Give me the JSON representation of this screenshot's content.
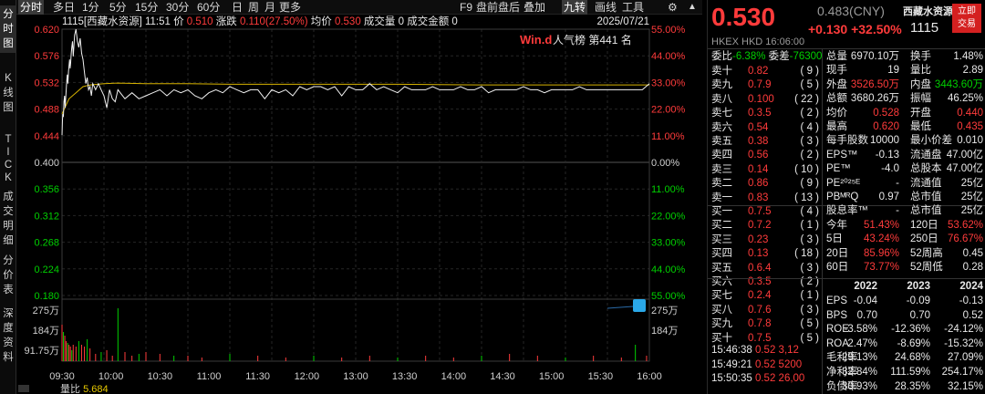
{
  "vtabs": [
    {
      "label": "分时图",
      "active": true
    },
    {
      "label": "K线图"
    },
    {
      "label": "TICK"
    },
    {
      "label": "成交明细"
    },
    {
      "label": "分价表"
    },
    {
      "label": "深度资料"
    }
  ],
  "toolbar": {
    "left": [
      "分时",
      "多日",
      "1分",
      "5分",
      "15分",
      "30分",
      "60分",
      "日",
      "周",
      "月",
      "更多"
    ],
    "right": [
      "F9",
      "盘前盘后",
      "叠加",
      "九转",
      "画线",
      "工具"
    ],
    "gear": "⚙",
    "up_arrow": "▲"
  },
  "info": {
    "code": "1115",
    "name": "[西藏水资源]",
    "time": "11:51",
    "price_label": "价",
    "price": "0.510",
    "change_label": "涨跌",
    "change": "0.110(27.50%)",
    "avg_label": "均价",
    "avg": "0.530",
    "vol_label": "成交量",
    "vol": "0",
    "amt_label": "成交金额",
    "amt": "0",
    "date": "2025/07/21"
  },
  "wind": {
    "logo": "Win.d",
    "label": "人气榜",
    "rank_prefix": "第",
    "rank": "441",
    "rank_suffix": "名"
  },
  "chart_data": {
    "type": "line",
    "prev_close": 0.4,
    "y_ticks": [
      "0.620",
      "0.576",
      "0.532",
      "0.488",
      "0.444",
      "0.400",
      "0.356",
      "0.312",
      "0.268",
      "0.224",
      "0.180"
    ],
    "pct_ticks": [
      "55.00%",
      "44.00%",
      "33.00%",
      "22.00%",
      "11.00%",
      "0.00%",
      "11.00%",
      "22.00%",
      "33.00%",
      "44.00%",
      "55.00%"
    ],
    "x_ticks": [
      "09:30",
      "10:00",
      "10:30",
      "11:00",
      "11:30",
      "12:00",
      "13:00",
      "13:30",
      "14:00",
      "14:30",
      "15:00",
      "15:30",
      "16:00"
    ],
    "vol_ticks": [
      "275万",
      "184万",
      "91.75万"
    ],
    "price_x": [
      0,
      0.3,
      0.6,
      1,
      1.4,
      1.8,
      2.2,
      2.6,
      3,
      3.4,
      3.8,
      4.2,
      4.6,
      5,
      5.4,
      5.8,
      6.2,
      6.6,
      7,
      7.5,
      8,
      9,
      10,
      11,
      12,
      13,
      14,
      15,
      16,
      17,
      18,
      19,
      20,
      21,
      22,
      23,
      24,
      26,
      28,
      30,
      32,
      34,
      36,
      38,
      40,
      45,
      50,
      55,
      60,
      65,
      70,
      75,
      80,
      85,
      90,
      95,
      100,
      105,
      110,
      115,
      120,
      125,
      130,
      135,
      140,
      145,
      150,
      155,
      160,
      165,
      170,
      175,
      180,
      185,
      190,
      195,
      200,
      205,
      210,
      215,
      220,
      225,
      230,
      235,
      240,
      245,
      250,
      255,
      260,
      265,
      270,
      275,
      280,
      285,
      290,
      295,
      300,
      305,
      310,
      315,
      320,
      325,
      330,
      335,
      340,
      345,
      350,
      355,
      360,
      365,
      370,
      375,
      380,
      385,
      390,
      395,
      400,
      405,
      410,
      415,
      420
    ],
    "price_y": [
      0.445,
      0.47,
      0.48,
      0.475,
      0.5,
      0.51,
      0.49,
      0.505,
      0.52,
      0.535,
      0.545,
      0.53,
      0.55,
      0.56,
      0.57,
      0.555,
      0.565,
      0.58,
      0.59,
      0.6,
      0.575,
      0.61,
      0.62,
      0.6,
      0.59,
      0.605,
      0.58,
      0.57,
      0.55,
      0.53,
      0.54,
      0.52,
      0.525,
      0.51,
      0.53,
      0.525,
      0.52,
      0.53,
      0.52,
      0.51,
      0.49,
      0.52,
      0.505,
      0.5,
      0.52,
      0.505,
      0.515,
      0.505,
      0.51,
      0.515,
      0.52,
      0.51,
      0.52,
      0.515,
      0.52,
      0.51,
      0.505,
      0.515,
      0.52,
      0.515,
      0.525,
      0.52,
      0.515,
      0.52,
      0.52,
      0.505,
      0.52,
      0.515,
      0.52,
      0.51,
      0.525,
      0.52,
      0.525,
      0.525,
      0.52,
      0.525,
      0.51,
      0.525,
      0.52,
      0.52,
      0.53,
      0.52,
      0.525,
      0.52,
      0.515,
      0.525,
      0.52,
      0.52,
      0.52,
      0.525,
      0.52,
      0.52,
      0.52,
      0.525,
      0.52,
      0.52,
      0.525,
      0.515,
      0.52,
      0.52,
      0.52,
      0.52,
      0.525,
      0.52,
      0.52,
      0.515,
      0.52,
      0.52,
      0.52,
      0.52,
      0.525,
      0.52,
      0.52,
      0.52,
      0.52,
      0.52,
      0.52,
      0.52,
      0.52,
      0.52,
      0.53
    ],
    "avg_x": [
      0,
      5,
      10,
      15,
      20,
      30,
      40,
      60,
      90,
      120,
      180,
      240,
      300,
      360,
      420
    ],
    "avg_y": [
      0.48,
      0.505,
      0.515,
      0.525,
      0.528,
      0.53,
      0.531,
      0.53,
      0.53,
      0.529,
      0.529,
      0.529,
      0.528,
      0.528,
      0.528
    ],
    "vol_x": [
      0,
      1,
      2,
      3,
      4,
      5,
      6,
      7,
      8,
      10,
      12,
      14,
      16,
      18,
      20,
      24,
      28,
      32,
      36,
      40,
      45,
      50,
      55,
      60,
      70,
      80,
      90,
      100,
      120,
      140,
      160,
      180,
      200,
      220,
      240,
      260,
      280,
      300,
      320,
      340,
      360,
      380,
      400,
      410,
      418
    ],
    "vol_v": [
      2.0,
      1.6,
      1.4,
      1.1,
      1.0,
      0.9,
      0.8,
      0.6,
      0.9,
      0.8,
      1.1,
      0.9,
      0.8,
      1.2,
      0.7,
      0.4,
      0.5,
      0.6,
      0.3,
      2.9,
      0.5,
      0.3,
      0.4,
      0.5,
      0.4,
      0.3,
      0.3,
      0.2,
      0.4,
      0.3,
      0.2,
      0.3,
      0.2,
      0.3,
      0.2,
      0.3,
      0.2,
      0.3,
      0.4,
      0.3,
      0.2,
      0.3,
      0.2,
      0.9,
      0.3
    ],
    "vol_max": 3.2
  },
  "bottom": {
    "label": "量比",
    "value": "5.684"
  },
  "quote": {
    "price": "0.530",
    "ref": "0.483(CNY)",
    "name": "西藏水资源",
    "code": "1115",
    "change": "+0.130",
    "pct": "+32.50%",
    "btn": "立即\n交易",
    "hkex": "HKEX  HKD  16:06:00"
  },
  "weibi": {
    "label1": "委比",
    "value1": "-6.38%",
    "label2": "委差",
    "value2": "-76300"
  },
  "asks": [
    {
      "label": "卖十",
      "price": "0.82",
      "vol": "9"
    },
    {
      "label": "卖九",
      "price": "0.7.9",
      "vol": "5"
    },
    {
      "label": "卖八",
      "price": "0.100",
      "vol": "22"
    },
    {
      "label": "卖七",
      "price": "0.3.5",
      "vol": "2"
    },
    {
      "label": "卖六",
      "price": "0.54",
      "vol": "4"
    },
    {
      "label": "卖五",
      "price": "0.38",
      "vol": "3"
    },
    {
      "label": "卖四",
      "price": "0.56",
      "vol": "2"
    },
    {
      "label": "卖三",
      "price": "0.14",
      "vol": "10"
    },
    {
      "label": "卖二",
      "price": "0.86",
      "vol": "9"
    },
    {
      "label": "卖一",
      "price": "0.83",
      "vol": "13"
    }
  ],
  "bids": [
    {
      "label": "买一",
      "price": "0.7.5",
      "vol": "4"
    },
    {
      "label": "买二",
      "price": "0.7.2",
      "vol": "1"
    },
    {
      "label": "买三",
      "price": "0.23",
      "vol": "3"
    },
    {
      "label": "买四",
      "price": "0.13",
      "vol": "18"
    },
    {
      "label": "买五",
      "price": "0.6.4",
      "vol": "3"
    },
    {
      "label": "买六",
      "price": "0.3.5",
      "vol": "2"
    },
    {
      "label": "买七",
      "price": "0.2.4",
      "vol": "1"
    },
    {
      "label": "买八",
      "price": "0.7.6",
      "vol": "3"
    },
    {
      "label": "买九",
      "price": "0.7.8",
      "vol": "5"
    },
    {
      "label": "买十",
      "price": "0.7.5",
      "vol": "5"
    }
  ],
  "ticks": [
    {
      "time": "15:46:38",
      "price": "0.52",
      "vol": "3,12"
    },
    {
      "time": "15:49:21",
      "price": "0.52",
      "vol": "5200"
    },
    {
      "time": "15:50:35",
      "price": "0.52",
      "vol": "26,00"
    }
  ],
  "stats": [
    {
      "l1": "总量",
      "v1": "6970.10万",
      "l2": "换手",
      "v2": "1.48%",
      "c1": "white",
      "c2": "white"
    },
    {
      "l1": "现手",
      "v1": "19",
      "l2": "量比",
      "v2": "2.89",
      "c1": "white",
      "c2": "white"
    },
    {
      "l1": "外盘",
      "v1": "3526.50万",
      "l2": "内盘",
      "v2": "3443.60万",
      "c1": "red",
      "c2": "green"
    },
    {
      "l1": "总额",
      "v1": "3680.26万",
      "l2": "振幅",
      "v2": "46.25%",
      "c1": "white",
      "c2": "white"
    },
    {
      "l1": "均价",
      "v1": "0.528",
      "l2": "开盘",
      "v2": "0.440",
      "c1": "red",
      "c2": "red"
    },
    {
      "l1": "最高",
      "v1": "0.620",
      "l2": "最低",
      "v2": "0.435",
      "c1": "red",
      "c2": "red"
    },
    {
      "l1": "每手股数",
      "v1": "10000",
      "l2": "最小价差",
      "v2": "0.010",
      "c1": "white",
      "c2": "white"
    },
    {
      "l1": "EPS™",
      "v1": "-0.13",
      "l2": "流通盘",
      "v2": "47.00亿",
      "c1": "white",
      "c2": "white"
    },
    {
      "l1": "PE™",
      "v1": "-4.0",
      "l2": "总股本",
      "v2": "47.00亿",
      "c1": "white",
      "c2": "white"
    },
    {
      "l1": "PE²⁰²⁵ᴱ",
      "v1": "-",
      "l2": "流通值",
      "v2": "25亿",
      "c1": "white",
      "c2": "white"
    },
    {
      "l1": "PBᴹᴿQ",
      "v1": "0.97",
      "l2": "总市值",
      "v2": "25亿",
      "c1": "white",
      "c2": "white"
    },
    {
      "l1": "股息率™",
      "v1": "-",
      "l2": "总市值",
      "v2": "25亿",
      "c1": "white",
      "c2": "white"
    },
    {
      "l1": "今年",
      "v1": "51.43%",
      "l2": "120日",
      "v2": "53.62%",
      "c1": "red",
      "c2": "red"
    },
    {
      "l1": "5日",
      "v1": "43.24%",
      "l2": "250日",
      "v2": "76.67%",
      "c1": "red",
      "c2": "red"
    },
    {
      "l1": "20日",
      "v1": "85.96%",
      "l2": "52周高",
      "v2": "0.45",
      "c1": "red",
      "c2": "white"
    },
    {
      "l1": "60日",
      "v1": "73.77%",
      "l2": "52周低",
      "v2": "0.28",
      "c1": "red",
      "c2": "white"
    }
  ],
  "fin": {
    "years": [
      "2022",
      "2023",
      "2024"
    ],
    "rows": [
      {
        "label": "EPS",
        "vals": [
          "-0.04",
          "-0.09",
          "-0.13"
        ],
        "color": "white"
      },
      {
        "label": "BPS",
        "vals": [
          "0.70",
          "0.70",
          "0.52"
        ],
        "color": "white"
      },
      {
        "label": "ROE",
        "vals": [
          "-3.58%",
          "-12.36%",
          "-24.12%"
        ],
        "color": "white"
      },
      {
        "label": "ROA",
        "vals": [
          "-2.47%",
          "-8.69%",
          "-15.32%"
        ],
        "color": "white"
      },
      {
        "label": "毛利率",
        "vals": [
          "29.13%",
          "24.68%",
          "27.09%"
        ],
        "color": "white"
      },
      {
        "label": "净利率",
        "vals": [
          "32.84%",
          "111.59%",
          "254.17%"
        ],
        "color": "white"
      },
      {
        "label": "负债率",
        "vals": [
          "30.93%",
          "28.35%",
          "32.15%"
        ],
        "color": "white"
      }
    ]
  }
}
